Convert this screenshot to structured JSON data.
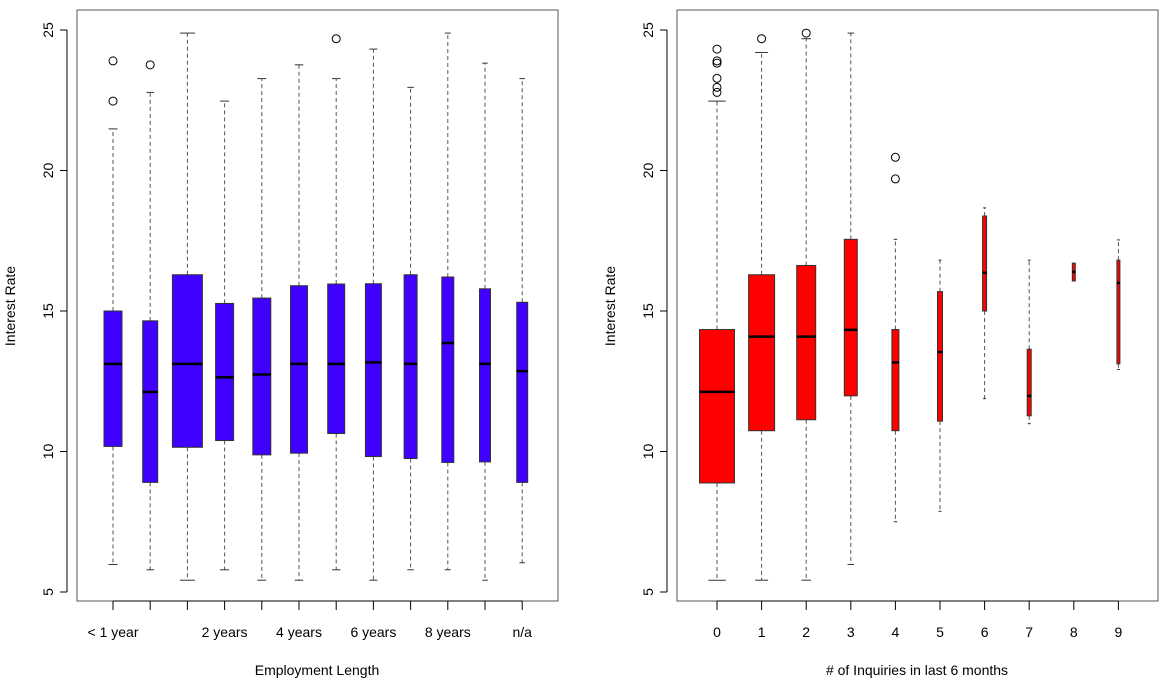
{
  "chart_data": [
    {
      "type": "boxplot",
      "xlabel": "Employment Length",
      "ylabel": "Interest Rate",
      "ylim": [
        5,
        25
      ],
      "yticks": [
        5,
        10,
        15,
        20,
        25
      ],
      "grid": false,
      "box_color": "#3F00FF",
      "tick_labels": [
        "< 1 year",
        "",
        "",
        "2 years",
        "",
        "4 years",
        "",
        "6 years",
        "",
        "8 years",
        "",
        "n/a"
      ],
      "boxes": [
        {
          "whisker_low": 5.98,
          "q1": 10.18,
          "median": 13.12,
          "q3": 15.0,
          "whisker_high": 21.48,
          "outliers": [
            22.47,
            23.9
          ]
        },
        {
          "whisker_low": 5.79,
          "q1": 8.9,
          "median": 12.12,
          "q3": 14.65,
          "whisker_high": 22.78,
          "outliers": [
            23.76
          ]
        },
        {
          "whisker_low": 5.42,
          "q1": 10.15,
          "median": 13.12,
          "q3": 16.29,
          "whisker_high": 24.89,
          "outliers": []
        },
        {
          "whisker_low": 5.79,
          "q1": 10.39,
          "median": 12.64,
          "q3": 15.27,
          "whisker_high": 22.47,
          "outliers": []
        },
        {
          "whisker_low": 5.42,
          "q1": 9.88,
          "median": 12.74,
          "q3": 15.46,
          "whisker_high": 23.27,
          "outliers": []
        },
        {
          "whisker_low": 5.42,
          "q1": 9.94,
          "median": 13.12,
          "q3": 15.9,
          "whisker_high": 23.76,
          "outliers": []
        },
        {
          "whisker_low": 5.79,
          "q1": 10.64,
          "median": 13.12,
          "q3": 15.96,
          "whisker_high": 23.27,
          "outliers": [
            24.69
          ]
        },
        {
          "whisker_low": 5.42,
          "q1": 9.82,
          "median": 13.17,
          "q3": 15.97,
          "whisker_high": 24.32,
          "outliers": []
        },
        {
          "whisker_low": 5.79,
          "q1": 9.75,
          "median": 13.12,
          "q3": 16.29,
          "whisker_high": 22.96,
          "outliers": []
        },
        {
          "whisker_low": 5.79,
          "q1": 9.61,
          "median": 13.86,
          "q3": 16.21,
          "whisker_high": 24.89,
          "outliers": []
        },
        {
          "whisker_low": 5.42,
          "q1": 9.63,
          "median": 13.12,
          "q3": 15.79,
          "whisker_high": 23.82,
          "outliers": []
        },
        {
          "whisker_low": 6.04,
          "q1": 8.9,
          "median": 12.86,
          "q3": 15.31,
          "whisker_high": 23.27,
          "outliers": []
        }
      ]
    },
    {
      "type": "boxplot",
      "xlabel": "# of Inquiries in last 6 months",
      "ylabel": "Interest Rate",
      "ylim": [
        5,
        25
      ],
      "yticks": [
        5,
        10,
        15,
        20,
        25
      ],
      "grid": false,
      "box_color": "#FF0000",
      "tick_labels": [
        "0",
        "1",
        "2",
        "3",
        "4",
        "5",
        "6",
        "7",
        "8",
        "9"
      ],
      "boxes": [
        {
          "whisker_low": 5.42,
          "q1": 8.88,
          "median": 12.12,
          "q3": 14.34,
          "whisker_high": 22.47,
          "outliers": [
            22.78,
            22.96,
            23.28,
            23.82,
            23.9,
            24.32
          ]
        },
        {
          "whisker_low": 5.42,
          "q1": 10.74,
          "median": 14.09,
          "q3": 16.29,
          "whisker_high": 24.2,
          "outliers": [
            24.69
          ]
        },
        {
          "whisker_low": 5.42,
          "q1": 11.13,
          "median": 14.09,
          "q3": 16.62,
          "whisker_high": 24.69,
          "outliers": [
            24.89
          ]
        },
        {
          "whisker_low": 5.98,
          "q1": 11.98,
          "median": 14.33,
          "q3": 17.55,
          "whisker_high": 24.89,
          "outliers": []
        },
        {
          "whisker_low": 7.5,
          "q1": 10.74,
          "median": 13.17,
          "q3": 14.34,
          "whisker_high": 17.55,
          "outliers": [
            19.7,
            20.47
          ]
        },
        {
          "whisker_low": 7.87,
          "q1": 11.08,
          "median": 13.54,
          "q3": 15.69,
          "whisker_high": 16.81,
          "outliers": []
        },
        {
          "whisker_low": 11.88,
          "q1": 15.0,
          "median": 16.36,
          "q3": 18.38,
          "whisker_high": 18.67,
          "outliers": []
        },
        {
          "whisker_low": 10.99,
          "q1": 11.27,
          "median": 11.98,
          "q3": 13.64,
          "whisker_high": 16.81,
          "outliers": []
        },
        {
          "whisker_low": 16.07,
          "q1": 16.07,
          "median": 16.39,
          "q3": 16.7,
          "whisker_high": 16.7,
          "outliers": []
        },
        {
          "whisker_low": 12.92,
          "q1": 13.12,
          "median": 16.0,
          "q3": 16.81,
          "whisker_high": 17.53,
          "outliers": []
        }
      ]
    }
  ]
}
